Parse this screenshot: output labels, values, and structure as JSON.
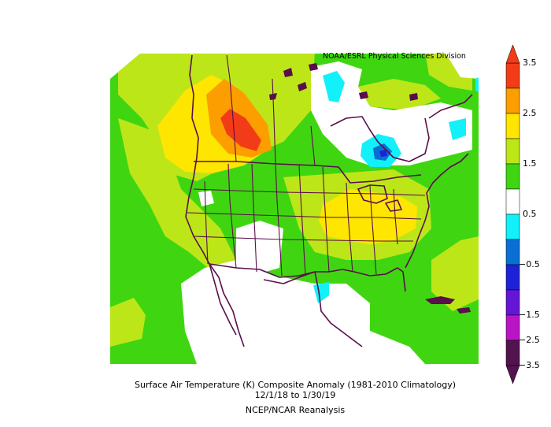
{
  "credit": "NOAA/ESRL Physical Sciences Division",
  "caption": {
    "line1": "Surface Air Temperature (K) Composite Anomaly (1981-2010 Climatology)",
    "line2": "12/1/18  to 1/30/19",
    "line3": "NCEP/NCAR Reanalysis"
  },
  "colorbar": {
    "labels": [
      "3.5",
      "2.5",
      "1.5",
      "0.5",
      "−0.5",
      "−1.5",
      "−2.5",
      "−3.5"
    ],
    "colors": [
      "#f23c17",
      "#fd9e00",
      "#fee600",
      "#bde619",
      "#3fd611",
      "#ffffff",
      "#12f0fa",
      "#0a6fd5",
      "#1e22d6",
      "#6415d6",
      "#ba15c5",
      "#52134f"
    ],
    "arrow_top_color": "#f23c17",
    "arrow_bottom_color": "#52134f"
  },
  "map": {
    "background_color": "#3fd611",
    "coast_color": "#5a0e4a"
  }
}
